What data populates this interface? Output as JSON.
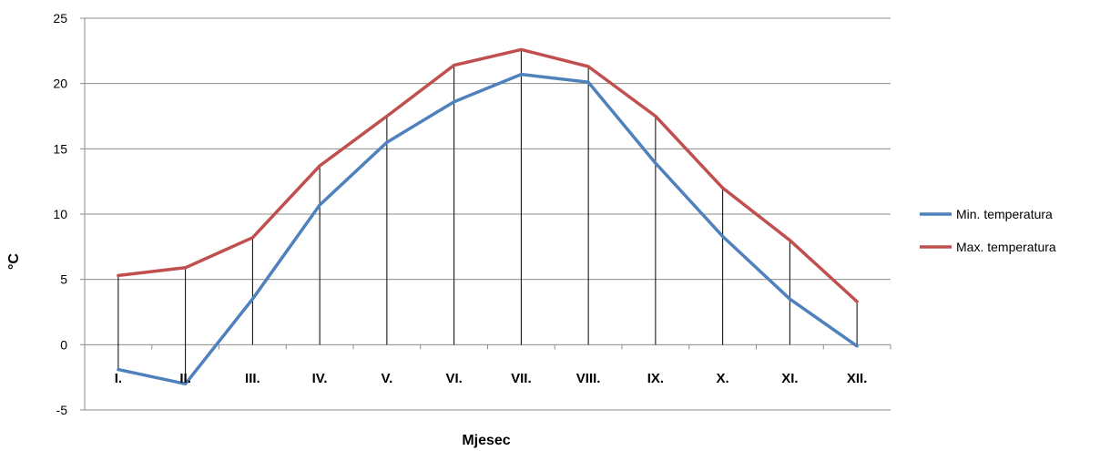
{
  "chart_data": {
    "type": "line",
    "xlabel": "Mjesec",
    "ylabel": "°C",
    "ylim": [
      -5,
      25
    ],
    "yticks": [
      -5,
      0,
      5,
      10,
      15,
      20,
      25
    ],
    "grid": "horizontal",
    "legend_position": "right",
    "categories": [
      "I.",
      "II.",
      "III.",
      "IV.",
      "V.",
      "VI.",
      "VII.",
      "VIII.",
      "IX.",
      "X.",
      "XI.",
      "XII."
    ],
    "series": [
      {
        "name": "Min. temperatura",
        "color": "#4f81bd",
        "values": [
          -1.9,
          -3.0,
          3.5,
          10.7,
          15.5,
          18.6,
          20.7,
          20.1,
          13.9,
          8.3,
          3.5,
          -0.1
        ]
      },
      {
        "name": "Max. temperatura",
        "color": "#c0504d",
        "values": [
          5.3,
          5.9,
          8.2,
          13.7,
          17.5,
          21.4,
          22.6,
          21.3,
          17.5,
          12.0,
          8.0,
          3.3
        ]
      }
    ],
    "drop_lines": true
  }
}
